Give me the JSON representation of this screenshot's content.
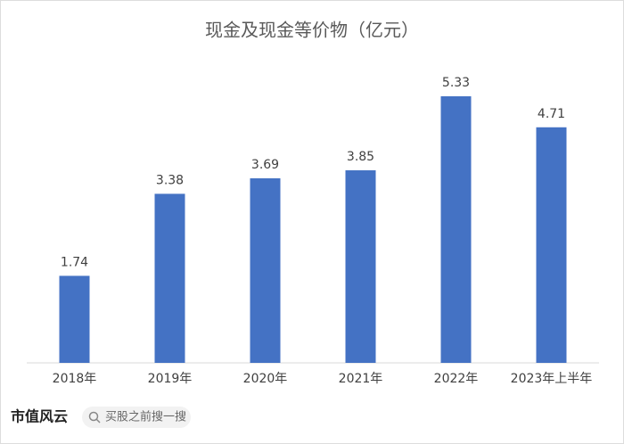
{
  "chart_data": {
    "type": "bar",
    "title": "现金及现金等价物（亿元）",
    "categories": [
      "2018年",
      "2019年",
      "2020年",
      "2021年",
      "2022年",
      "2023年上半年"
    ],
    "values": [
      1.74,
      3.38,
      3.69,
      3.85,
      5.33,
      4.71
    ],
    "color": "#4472c4"
  },
  "footer": {
    "brand": "市值风云",
    "search": "买股之前搜一搜"
  }
}
